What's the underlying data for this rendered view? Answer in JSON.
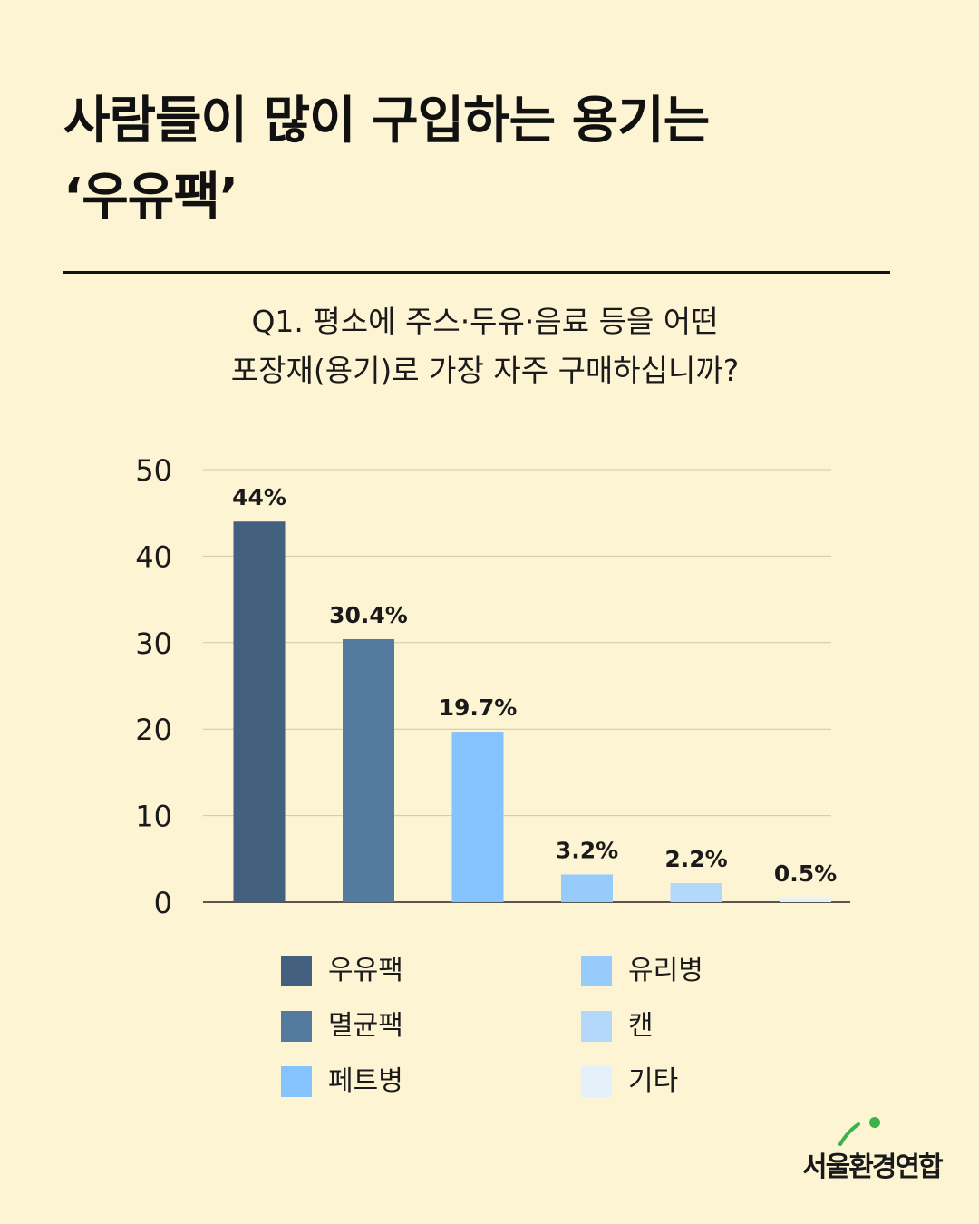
{
  "header": {
    "title_line1": "사람들이 많이 구입하는 용기는",
    "title_line2": "‘우유팩’"
  },
  "question": {
    "line1": "Q1. 평소에 주스·두유·음료 등을 어떤",
    "line2": "포장재(용기)로 가장 자주 구매하십니까?"
  },
  "chart_data": {
    "type": "bar",
    "categories": [
      "우유팩",
      "멸균팩",
      "페트병",
      "유리병",
      "캔",
      "기타"
    ],
    "values": [
      44,
      30.4,
      19.7,
      3.2,
      2.2,
      0.5
    ],
    "data_labels": [
      "44%",
      "30.4%",
      "19.7%",
      "3.2%",
      "2.2%",
      "0.5%"
    ],
    "colors": [
      "#44607f",
      "#547a9f",
      "#84c3fd",
      "#96cbfc",
      "#b4d8fc",
      "#e4f1fb"
    ],
    "ylim": [
      0,
      50
    ],
    "yticks": [
      0,
      10,
      20,
      30,
      40,
      50
    ],
    "grid": true,
    "legend": "bottom"
  },
  "logo": {
    "text": "서울환경연합",
    "accent_color": "#3cb34a"
  }
}
